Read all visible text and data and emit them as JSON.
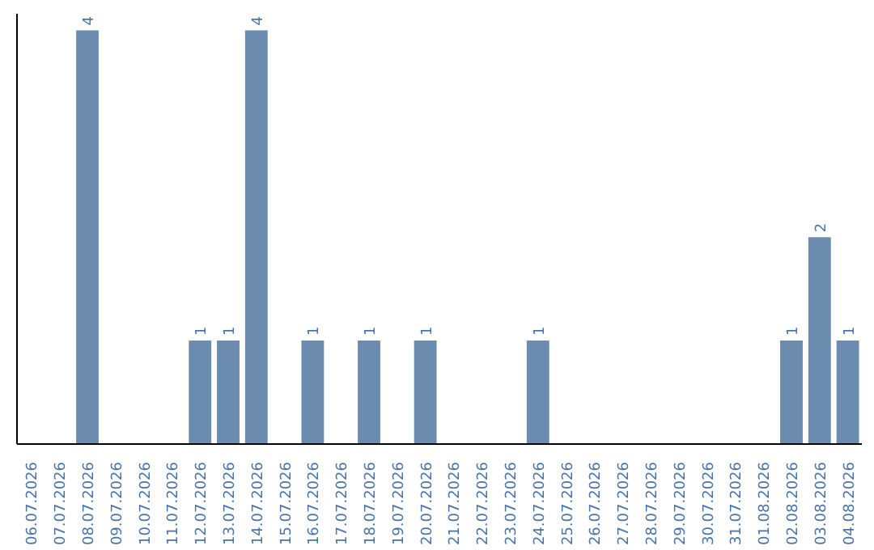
{
  "chart_data": {
    "type": "bar",
    "categories": [
      "06.07.2026",
      "07.07.2026",
      "08.07.2026",
      "09.07.2026",
      "10.07.2026",
      "11.07.2026",
      "12.07.2026",
      "13.07.2026",
      "14.07.2026",
      "15.07.2026",
      "16.07.2026",
      "17.07.2026",
      "18.07.2026",
      "19.07.2026",
      "20.07.2026",
      "21.07.2026",
      "22.07.2026",
      "23.07.2026",
      "24.07.2026",
      "25.07.2026",
      "26.07.2026",
      "27.07.2026",
      "28.07.2026",
      "29.07.2026",
      "30.07.2026",
      "31.07.2026",
      "01.08.2026",
      "02.08.2026",
      "03.08.2026",
      "04.08.2026"
    ],
    "values": [
      0,
      0,
      4,
      0,
      0,
      0,
      1,
      1,
      4,
      0,
      1,
      0,
      1,
      0,
      1,
      0,
      0,
      0,
      1,
      0,
      0,
      0,
      0,
      0,
      0,
      0,
      0,
      1,
      2,
      1
    ],
    "value_labels": [
      null,
      null,
      "4",
      null,
      null,
      null,
      "1",
      "1",
      "4",
      null,
      "1",
      null,
      "1",
      null,
      "1",
      null,
      null,
      null,
      "1",
      null,
      null,
      null,
      null,
      null,
      null,
      null,
      null,
      "1",
      "2",
      "1"
    ],
    "color": "#6b8cae"
  }
}
